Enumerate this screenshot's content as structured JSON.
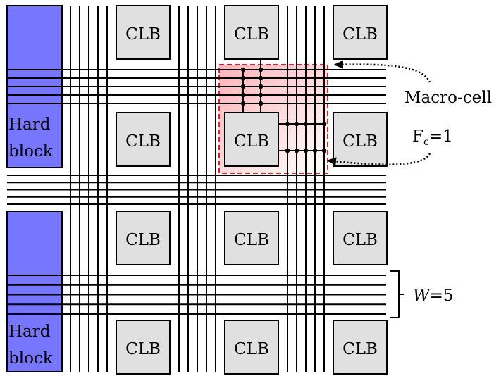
{
  "clb_label": "CLB",
  "hard_block": {
    "line1": "Hard",
    "line2": "block"
  },
  "annotations": {
    "macro_cell": "Macro-cell",
    "fc_prefix": "F",
    "fc_sub": "c",
    "fc_suffix": "=1",
    "w_var": "W",
    "w_suffix": "=5"
  },
  "colors": {
    "hard_block_fill": "#7676ff",
    "clb_fill": "#e0e0e0",
    "macro_cell_border": "#e0202a",
    "macro_cell_fill": "#ffb3b8",
    "wire": "#000000"
  },
  "grid": {
    "clb_rows": 4,
    "clb_cols": 3,
    "channel_width": 5,
    "hard_block_count": 2
  }
}
